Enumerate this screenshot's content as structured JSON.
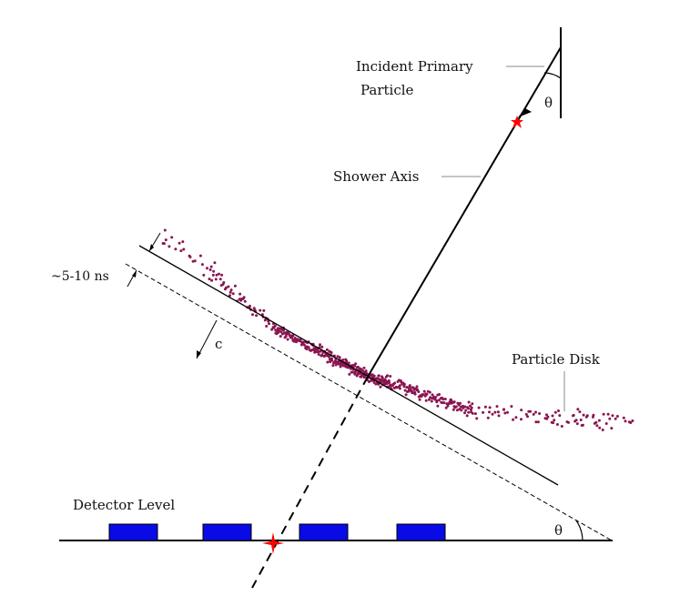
{
  "labels": {
    "incident_line1": "Incident Primary",
    "incident_line2": "Particle",
    "shower_axis": "Shower Axis",
    "particle_disk": "Particle Disk",
    "timing": "~5-10 ns",
    "speed": "c",
    "detector_level": "Detector Level",
    "angle_top": "θ",
    "angle_bottom": "θ"
  },
  "colors": {
    "line": "#000000",
    "detector": "#0a0ae6",
    "particles": "#8b1550",
    "first_interaction_star": "#ff0000",
    "ground_impact_star": "#ff0000"
  },
  "detectors": {
    "count": 4
  }
}
